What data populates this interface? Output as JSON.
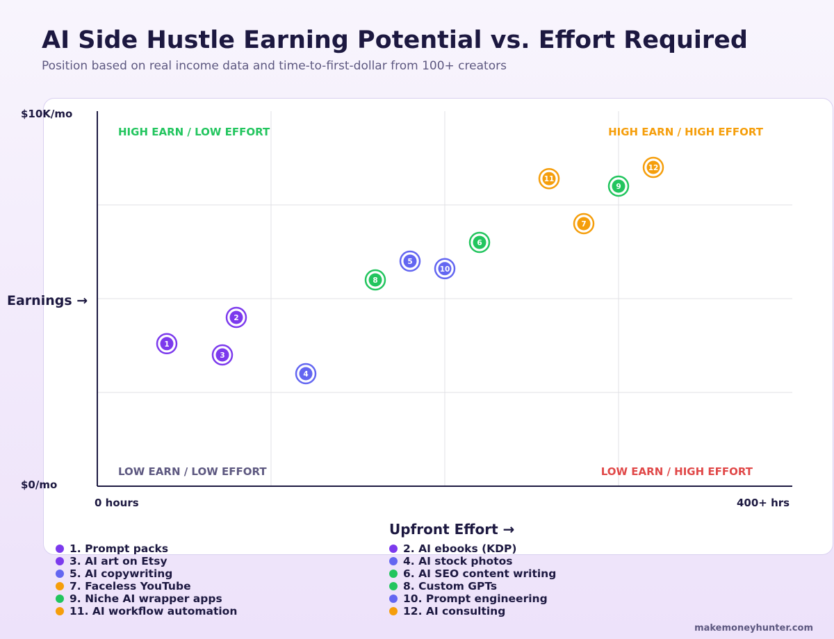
{
  "title": "AI Side Hustle Earning Potential vs. Effort Required",
  "subtitle": "Position based on real income data and time-to-first-dollar from 100+ creators",
  "watermark": "makemoneyhunter.com",
  "colors": {
    "purple": "#7c3aed",
    "blue": "#6366f1",
    "green": "#22c55e",
    "orange": "#f59e0b",
    "red": "#e04848",
    "gray": "#5d5880"
  },
  "chart_data": {
    "type": "scatter",
    "title": "AI Side Hustle Earning Potential vs. Effort Required",
    "subtitle": "Position based on real income data and time-to-first-dollar from 100+ creators",
    "xlabel": "Upfront Effort →",
    "ylabel": "Earnings →",
    "x_tick_labels": [
      "0 hours",
      "400+ hrs"
    ],
    "y_tick_labels": [
      "$10K/mo",
      "$0/mo"
    ],
    "xlim": [
      0,
      400
    ],
    "ylim": [
      0,
      10
    ],
    "grid": true,
    "quadrant_labels": [
      {
        "text": "HIGH EARN / LOW EFFORT",
        "color": "#22c55e"
      },
      {
        "text": "HIGH EARN / HIGH EFFORT",
        "color": "#f59e0b"
      },
      {
        "text": "LOW EARN / LOW EFFORT",
        "color": "#5d5880"
      },
      {
        "text": "LOW EARN / HIGH EFFORT",
        "color": "#e04848"
      }
    ],
    "points": [
      {
        "id": 1,
        "label": "1. Prompt packs",
        "x": 40,
        "y": 3.8,
        "color": "#7c3aed"
      },
      {
        "id": 2,
        "label": "2. AI ebooks (KDP)",
        "x": 80,
        "y": 4.5,
        "color": "#7c3aed"
      },
      {
        "id": 3,
        "label": "3. AI art on Etsy",
        "x": 72,
        "y": 3.5,
        "color": "#7c3aed"
      },
      {
        "id": 4,
        "label": "4. AI stock photos",
        "x": 120,
        "y": 3.0,
        "color": "#6366f1"
      },
      {
        "id": 5,
        "label": "5. AI copywriting",
        "x": 180,
        "y": 6.0,
        "color": "#6366f1"
      },
      {
        "id": 6,
        "label": "6. AI SEO content writing",
        "x": 220,
        "y": 6.5,
        "color": "#22c55e"
      },
      {
        "id": 7,
        "label": "7. Faceless YouTube",
        "x": 280,
        "y": 7.0,
        "color": "#f59e0b"
      },
      {
        "id": 8,
        "label": "8. Custom GPTs",
        "x": 160,
        "y": 5.5,
        "color": "#22c55e"
      },
      {
        "id": 9,
        "label": "9. Niche AI wrapper apps",
        "x": 300,
        "y": 8.0,
        "color": "#22c55e"
      },
      {
        "id": 10,
        "label": "10. Prompt engineering",
        "x": 200,
        "y": 5.8,
        "color": "#6366f1"
      },
      {
        "id": 11,
        "label": "11. AI workflow automation",
        "x": 260,
        "y": 8.2,
        "color": "#f59e0b"
      },
      {
        "id": 12,
        "label": "12. AI consulting",
        "x": 320,
        "y": 8.5,
        "color": "#f59e0b"
      }
    ]
  }
}
